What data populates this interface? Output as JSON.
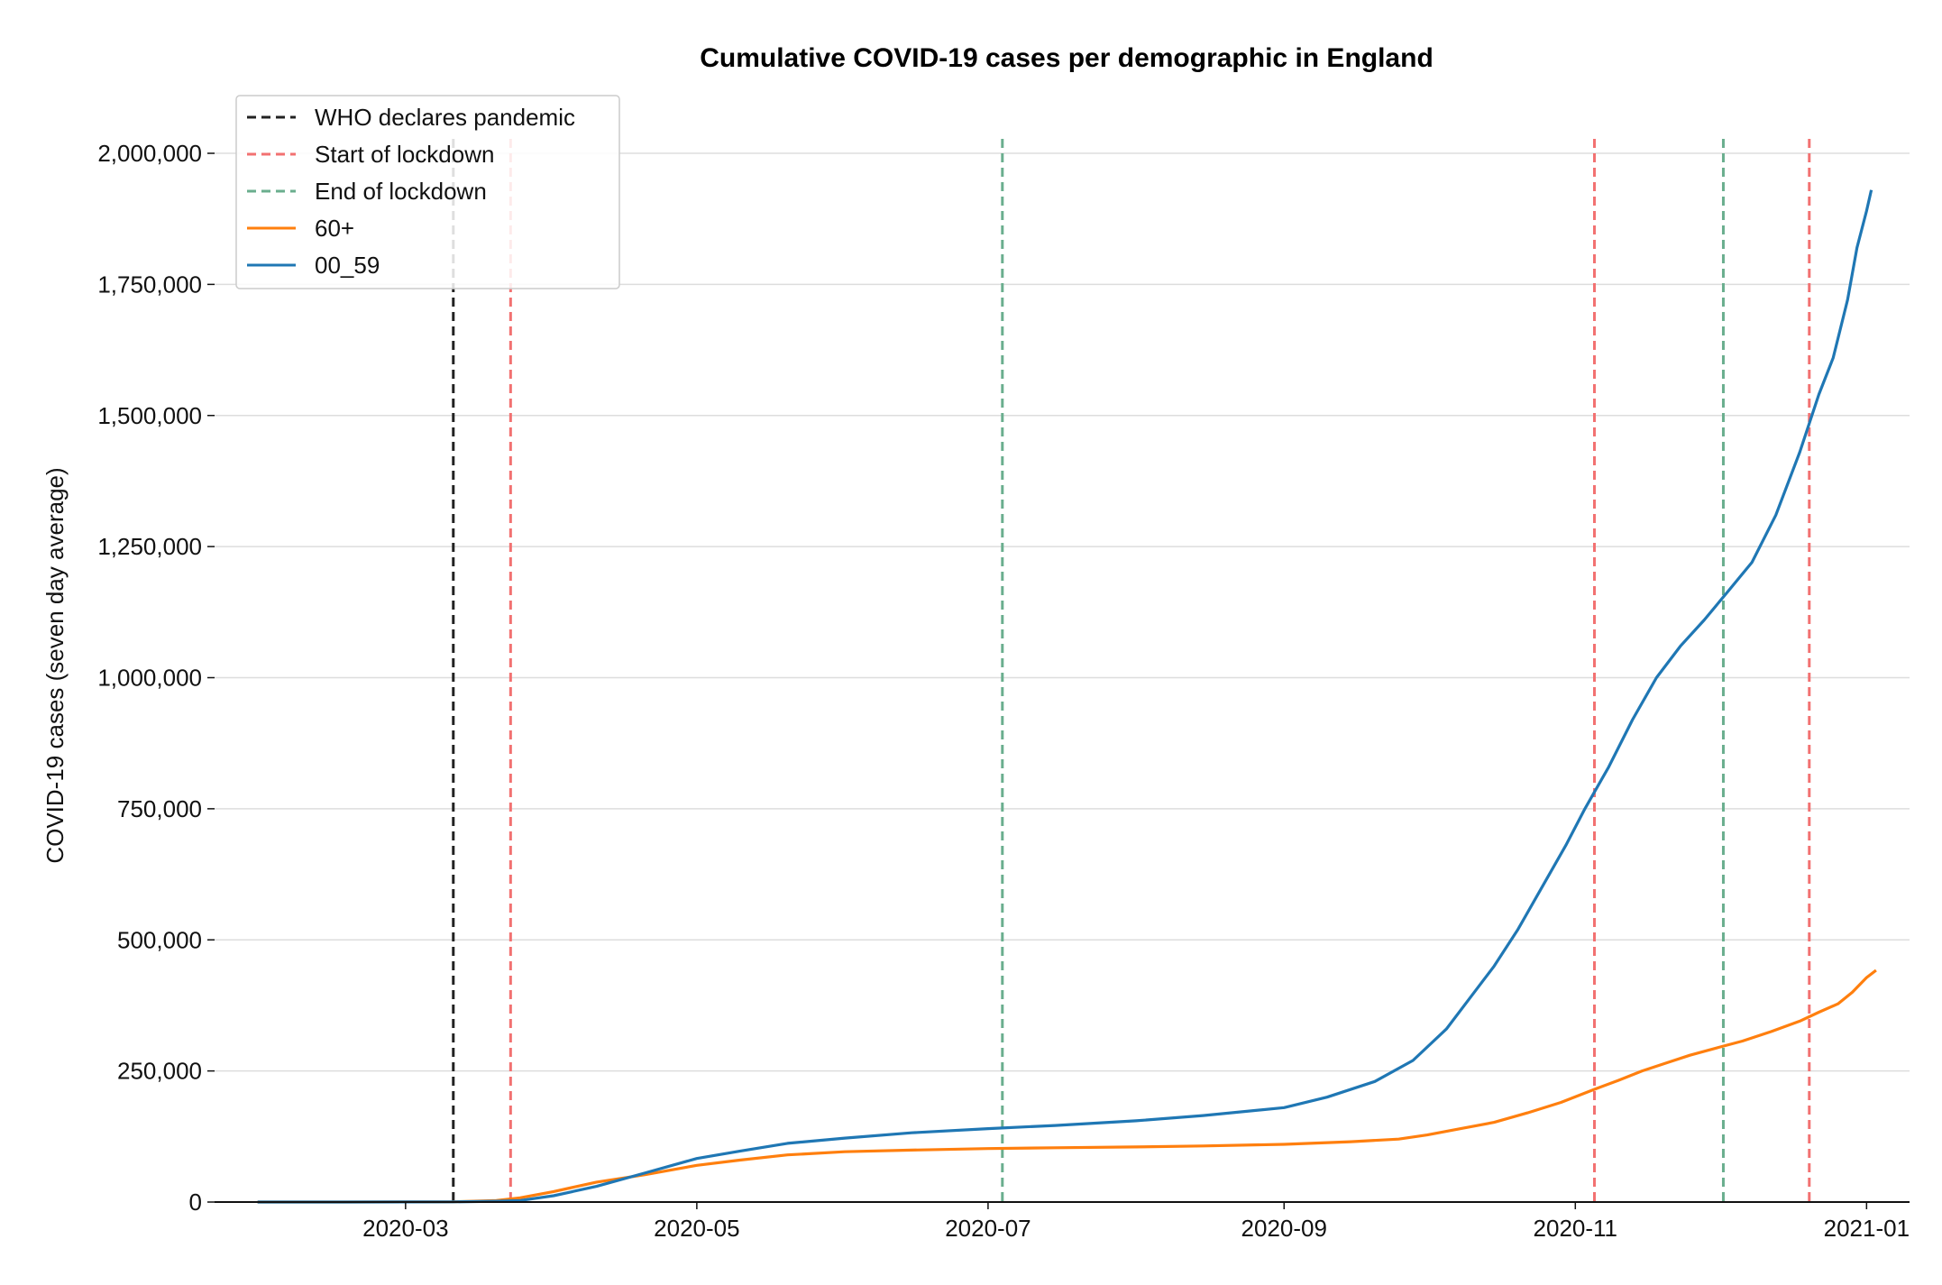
{
  "chart_data": {
    "type": "line",
    "title": "Cumulative COVID-19 cases per demographic in England",
    "xlabel": "",
    "ylabel": "COVID-19 cases (seven day average)",
    "xlim": [
      "2020-01-21",
      "2021-01-10"
    ],
    "ylim": [
      0,
      2000000
    ],
    "grid": "horizontal",
    "legend_position": "top-left",
    "x_ticks": [
      "2020-03",
      "2020-05",
      "2020-07",
      "2020-09",
      "2020-11",
      "2021-01"
    ],
    "y_ticks": [
      {
        "value": 0,
        "label": "0"
      },
      {
        "value": 250000,
        "label": "250,000"
      },
      {
        "value": 500000,
        "label": "500,000"
      },
      {
        "value": 750000,
        "label": "750,000"
      },
      {
        "value": 1000000,
        "label": "1,000,000"
      },
      {
        "value": 1250000,
        "label": "1,250,000"
      },
      {
        "value": 1500000,
        "label": "1,500,000"
      },
      {
        "value": 1750000,
        "label": "1,750,000"
      },
      {
        "value": 2000000,
        "label": "2,000,000"
      }
    ],
    "vlines": [
      {
        "legend": "WHO declares pandemic",
        "date": "2020-03-11",
        "color": "#222222"
      },
      {
        "legend": "Start of lockdown",
        "date": "2020-03-23",
        "color": "#f27171"
      },
      {
        "legend": "End of lockdown",
        "date": "2020-07-04",
        "color": "#6aae8e"
      },
      {
        "legend": "",
        "date": "2020-11-05",
        "color": "#f27171"
      },
      {
        "legend": "",
        "date": "2020-12-02",
        "color": "#6aae8e"
      },
      {
        "legend": "",
        "date": "2020-12-20",
        "color": "#f27171"
      }
    ],
    "series": [
      {
        "name": "60+",
        "color": "#ff7f0e",
        "points": [
          [
            "2020-01-30",
            0
          ],
          [
            "2020-02-15",
            0
          ],
          [
            "2020-03-01",
            200
          ],
          [
            "2020-03-11",
            500
          ],
          [
            "2020-03-20",
            3000
          ],
          [
            "2020-03-25",
            8000
          ],
          [
            "2020-04-01",
            20000
          ],
          [
            "2020-04-10",
            38000
          ],
          [
            "2020-04-20",
            52000
          ],
          [
            "2020-05-01",
            70000
          ],
          [
            "2020-05-10",
            80000
          ],
          [
            "2020-05-20",
            90000
          ],
          [
            "2020-06-01",
            96000
          ],
          [
            "2020-06-15",
            99000
          ],
          [
            "2020-07-01",
            102000
          ],
          [
            "2020-07-15",
            103500
          ],
          [
            "2020-08-01",
            105000
          ],
          [
            "2020-08-15",
            107000
          ],
          [
            "2020-09-01",
            110000
          ],
          [
            "2020-09-15",
            115000
          ],
          [
            "2020-09-25",
            120000
          ],
          [
            "2020-10-01",
            128000
          ],
          [
            "2020-10-08",
            140000
          ],
          [
            "2020-10-15",
            152000
          ],
          [
            "2020-10-22",
            170000
          ],
          [
            "2020-10-29",
            190000
          ],
          [
            "2020-11-05",
            215000
          ],
          [
            "2020-11-10",
            232000
          ],
          [
            "2020-11-15",
            250000
          ],
          [
            "2020-11-20",
            265000
          ],
          [
            "2020-11-25",
            280000
          ],
          [
            "2020-12-01",
            295000
          ],
          [
            "2020-12-06",
            307000
          ],
          [
            "2020-12-12",
            325000
          ],
          [
            "2020-12-18",
            345000
          ],
          [
            "2020-12-22",
            362000
          ],
          [
            "2020-12-26",
            378000
          ],
          [
            "2020-12-29",
            400000
          ],
          [
            "2021-01-01",
            428000
          ],
          [
            "2021-01-03",
            442000
          ]
        ]
      },
      {
        "name": "00_59",
        "color": "#1f77b4",
        "points": [
          [
            "2020-01-30",
            0
          ],
          [
            "2020-02-15",
            0
          ],
          [
            "2020-03-01",
            100
          ],
          [
            "2020-03-11",
            300
          ],
          [
            "2020-03-20",
            1500
          ],
          [
            "2020-03-25",
            3000
          ],
          [
            "2020-04-01",
            12000
          ],
          [
            "2020-04-10",
            30000
          ],
          [
            "2020-04-20",
            55000
          ],
          [
            "2020-05-01",
            83000
          ],
          [
            "2020-05-10",
            97000
          ],
          [
            "2020-05-20",
            112000
          ],
          [
            "2020-06-01",
            122000
          ],
          [
            "2020-06-15",
            132000
          ],
          [
            "2020-07-01",
            140000
          ],
          [
            "2020-07-15",
            146000
          ],
          [
            "2020-08-01",
            155000
          ],
          [
            "2020-08-15",
            165000
          ],
          [
            "2020-09-01",
            180000
          ],
          [
            "2020-09-10",
            200000
          ],
          [
            "2020-09-20",
            230000
          ],
          [
            "2020-09-28",
            270000
          ],
          [
            "2020-10-05",
            330000
          ],
          [
            "2020-10-10",
            390000
          ],
          [
            "2020-10-15",
            450000
          ],
          [
            "2020-10-20",
            520000
          ],
          [
            "2020-10-25",
            600000
          ],
          [
            "2020-10-30",
            680000
          ],
          [
            "2020-11-03",
            750000
          ],
          [
            "2020-11-08",
            830000
          ],
          [
            "2020-11-13",
            920000
          ],
          [
            "2020-11-18",
            1000000
          ],
          [
            "2020-11-23",
            1060000
          ],
          [
            "2020-11-28",
            1110000
          ],
          [
            "2020-12-03",
            1165000
          ],
          [
            "2020-12-08",
            1220000
          ],
          [
            "2020-12-13",
            1310000
          ],
          [
            "2020-12-18",
            1430000
          ],
          [
            "2020-12-22",
            1540000
          ],
          [
            "2020-12-25",
            1610000
          ],
          [
            "2020-12-28",
            1720000
          ],
          [
            "2020-12-30",
            1820000
          ],
          [
            "2021-01-01",
            1890000
          ],
          [
            "2021-01-02",
            1930000
          ]
        ]
      }
    ]
  }
}
